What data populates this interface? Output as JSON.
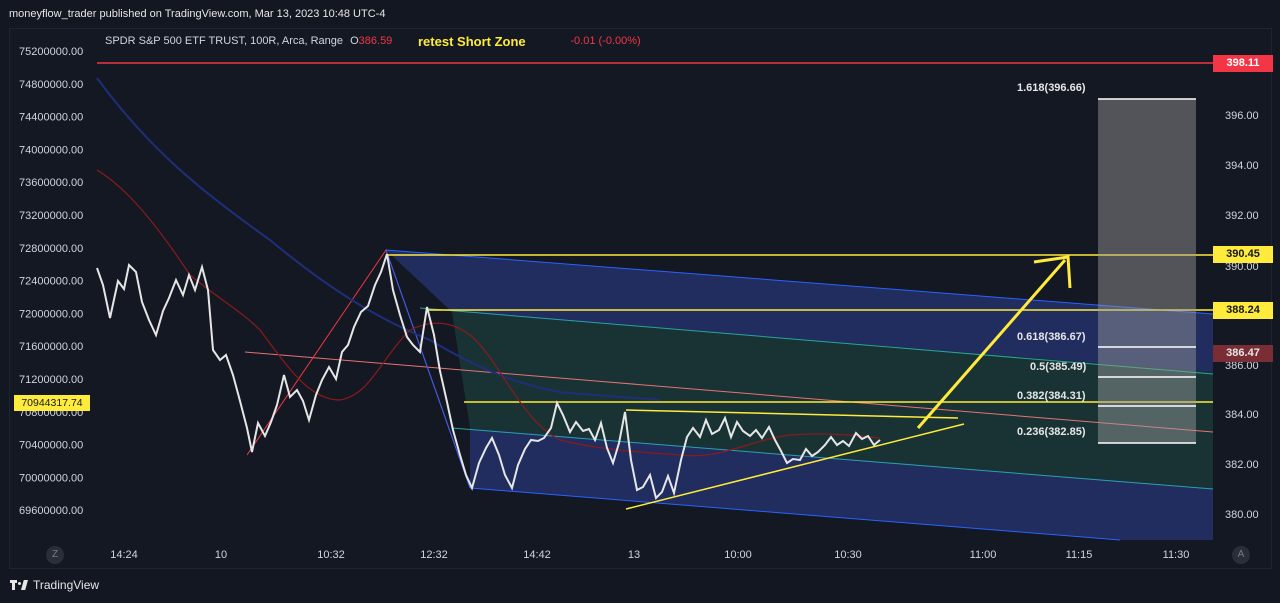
{
  "header": {
    "published": "moneyflow_trader published on TradingView.com, Mar 13, 2023 10:48 UTC-4"
  },
  "legend": {
    "symbol": "SPDR S&P 500 ETF TRUST, 100R, Arca, Range",
    "open_prefix": "O",
    "open_value": "386.59",
    "change": "-0.01 (-0.00%)"
  },
  "annotation": {
    "title": "retest Short Zone"
  },
  "left_axis": {
    "ticks": [
      "75200000.00",
      "74800000.00",
      "74400000.00",
      "74000000.00",
      "73600000.00",
      "73200000.00",
      "72800000.00",
      "72400000.00",
      "72000000.00",
      "71600000.00",
      "71200000.00",
      "70800000.00",
      "70400000.00",
      "70000000.00",
      "69600000.00"
    ],
    "marker": "70944317.74"
  },
  "right_axis": {
    "ticks": [
      "396.00",
      "394.00",
      "392.00",
      "390.00",
      "386.00",
      "384.00",
      "382.00",
      "380.00"
    ],
    "tags": [
      {
        "label": "398.11",
        "kind": "red"
      },
      {
        "label": "390.45",
        "kind": "yellow"
      },
      {
        "label": "388.24",
        "kind": "yellow"
      },
      {
        "label": "386.47",
        "kind": "dark-red"
      }
    ]
  },
  "time_axis": {
    "labels": [
      "14:24",
      "10",
      "10:32",
      "12:32",
      "14:42",
      "13",
      "10:00",
      "10:30",
      "11:00",
      "11:15",
      "11:30"
    ]
  },
  "fib_levels": [
    "1.618(396.66)",
    "0.618(386.67)",
    "0.5(385.49)",
    "0.382(384.31)",
    "0.236(382.85)"
  ],
  "corner_buttons": {
    "left": "Z",
    "right": "A"
  },
  "footer": {
    "brand": "TradingView"
  },
  "colors": {
    "background": "#131722",
    "price_line": "#e0e0e0",
    "yellow": "#ffeb3b",
    "red": "#f23645",
    "channel_blue": "#2962ff",
    "channel_teal": "#26a69a"
  }
}
